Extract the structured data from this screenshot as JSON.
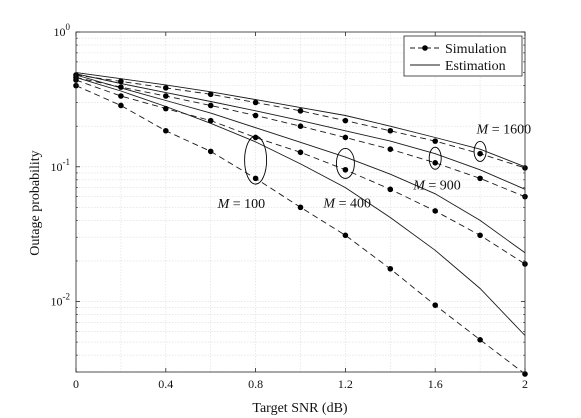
{
  "chart_data": {
    "type": "line",
    "xlabel": "Target SNR (dB)",
    "ylabel": "Outage probability",
    "xlim": [
      0,
      2
    ],
    "ylim": [
      0.003,
      1
    ],
    "yscale": "log",
    "grid": true,
    "legend_position": "top-right",
    "x_ticks": [
      0,
      0.4,
      0.8,
      1.2,
      1.6,
      2
    ],
    "x_tick_labels": [
      "0",
      "0.4",
      "0.8",
      "1.2",
      "1.6",
      "2"
    ],
    "y_ticks": [
      0.01,
      0.1,
      1
    ],
    "y_tick_labels": [
      {
        "base": "10",
        "exp": "-2"
      },
      {
        "base": "10",
        "exp": "-1"
      },
      {
        "base": "10",
        "exp": "0"
      }
    ],
    "legend": [
      {
        "label": "Simulation",
        "style": "dashed-dot-marker"
      },
      {
        "label": "Estimation",
        "style": "solid"
      }
    ],
    "groups": [
      {
        "label": "M = 100",
        "label_var": "M",
        "label_value": "= 100",
        "simulation": {
          "x": [
            0,
            0.2,
            0.4,
            0.6,
            0.8,
            1.0,
            1.2,
            1.4,
            1.6,
            1.8,
            2.0
          ],
          "y": [
            0.4,
            0.285,
            0.185,
            0.13,
            0.082,
            0.05,
            0.031,
            0.0175,
            0.0094,
            0.0052,
            0.0029
          ]
        },
        "estimation": {
          "x": [
            0,
            0.2,
            0.4,
            0.6,
            0.8,
            1.0,
            1.2,
            1.4,
            1.6,
            1.8,
            2.0
          ],
          "y": [
            0.46,
            0.365,
            0.28,
            0.21,
            0.153,
            0.105,
            0.07,
            0.042,
            0.024,
            0.0125,
            0.0056
          ]
        }
      },
      {
        "label": "M = 400",
        "label_var": "M",
        "label_value": "= 400",
        "simulation": {
          "x": [
            0,
            0.2,
            0.4,
            0.6,
            0.8,
            1.0,
            1.2,
            1.4,
            1.6,
            1.8,
            2.0
          ],
          "y": [
            0.44,
            0.335,
            0.27,
            0.22,
            0.165,
            0.128,
            0.095,
            0.068,
            0.047,
            0.031,
            0.019
          ]
        },
        "estimation": {
          "x": [
            0,
            0.2,
            0.4,
            0.6,
            0.8,
            1.0,
            1.2,
            1.4,
            1.6,
            1.8,
            2.0
          ],
          "y": [
            0.48,
            0.385,
            0.31,
            0.25,
            0.195,
            0.152,
            0.118,
            0.088,
            0.063,
            0.04,
            0.023
          ]
        }
      },
      {
        "label": "M = 900",
        "label_var": "M",
        "label_value": "= 900",
        "simulation": {
          "x": [
            0,
            0.2,
            0.4,
            0.6,
            0.8,
            1.0,
            1.2,
            1.4,
            1.6,
            1.8,
            2.0
          ],
          "y": [
            0.46,
            0.39,
            0.335,
            0.285,
            0.24,
            0.2,
            0.165,
            0.135,
            0.107,
            0.082,
            0.06
          ]
        },
        "estimation": {
          "x": [
            0,
            0.2,
            0.4,
            0.6,
            0.8,
            1.0,
            1.2,
            1.4,
            1.6,
            1.8,
            2.0
          ],
          "y": [
            0.49,
            0.415,
            0.355,
            0.305,
            0.26,
            0.22,
            0.185,
            0.155,
            0.125,
            0.095,
            0.068
          ]
        }
      },
      {
        "label": "M = 1600",
        "label_var": "M",
        "label_value": "= 1600",
        "simulation": {
          "x": [
            0,
            0.2,
            0.4,
            0.6,
            0.8,
            1.0,
            1.2,
            1.4,
            1.6,
            1.8,
            2.0
          ],
          "y": [
            0.48,
            0.43,
            0.385,
            0.345,
            0.3,
            0.26,
            0.22,
            0.185,
            0.155,
            0.125,
            0.098
          ]
        },
        "estimation": {
          "x": [
            0,
            0.2,
            0.4,
            0.6,
            0.8,
            1.0,
            1.2,
            1.4,
            1.6,
            1.8,
            2.0
          ],
          "y": [
            0.5,
            0.45,
            0.405,
            0.36,
            0.315,
            0.275,
            0.24,
            0.2,
            0.165,
            0.135,
            0.1
          ]
        }
      }
    ]
  }
}
